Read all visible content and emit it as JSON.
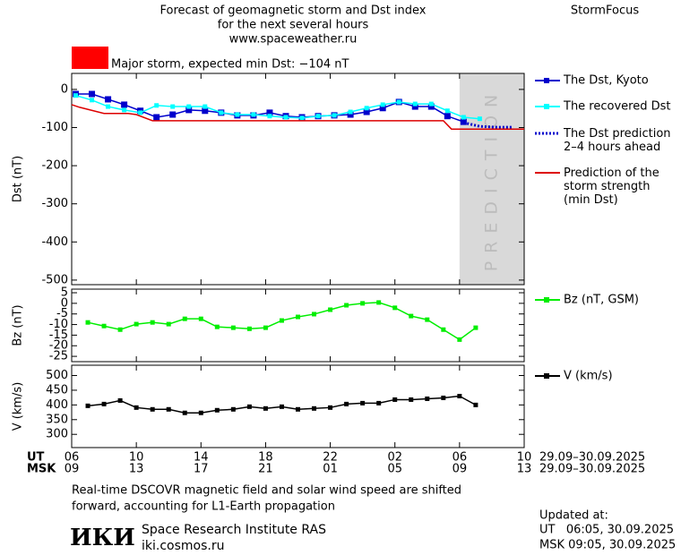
{
  "header": {
    "title_lines": [
      "Forecast of geomagnetic storm and Dst index",
      "for the next several hours",
      "www.spaceweather.ru"
    ],
    "brand": "StormFocus",
    "storm_note": "Major storm, expected min Dst: −104 nT",
    "storm_color": "#ff0000"
  },
  "time_axis": {
    "xlim": [
      6,
      34
    ],
    "ut": "UT",
    "msk": "MSK",
    "ut_ticks": [
      {
        "value": 6,
        "label": "06"
      },
      {
        "value": 10,
        "label": "10"
      },
      {
        "value": 14,
        "label": "14"
      },
      {
        "value": 18,
        "label": "18"
      },
      {
        "value": 22,
        "label": "22"
      },
      {
        "value": 26,
        "label": "02"
      },
      {
        "value": 30,
        "label": "06"
      },
      {
        "value": 34,
        "label": "10"
      }
    ],
    "msk_ticks": [
      {
        "value": 6,
        "label": "09"
      },
      {
        "value": 10,
        "label": "13"
      },
      {
        "value": 14,
        "label": "17"
      },
      {
        "value": 18,
        "label": "21"
      },
      {
        "value": 22,
        "label": "01"
      },
      {
        "value": 26,
        "label": "05"
      },
      {
        "value": 30,
        "label": "09"
      },
      {
        "value": 34,
        "label": "13"
      }
    ],
    "ut_range": "29.09–30.09.2025",
    "msk_range": "29.09–30.09.2025"
  },
  "chart_data": [
    {
      "type": "line",
      "ylabel": "Dst (nT)",
      "ylim": [
        -512,
        42
      ],
      "yticks": [
        0,
        -100,
        -200,
        -300,
        -400,
        -500
      ],
      "prediction_region": {
        "x": [
          30,
          34
        ],
        "label": "PREDICTION",
        "color": "#d9d9d9"
      },
      "series": [
        {
          "name": "The Dst, Kyoto",
          "color": "#0000cc",
          "marker": "square",
          "marker_size": 7,
          "x": [
            6.25,
            7.25,
            8.25,
            9.25,
            10.25,
            11.25,
            12.25,
            13.25,
            14.25,
            15.25,
            16.25,
            17.25,
            18.25,
            19.25,
            20.25,
            21.25,
            22.25,
            23.25,
            24.25,
            25.25,
            26.25,
            27.25,
            28.25,
            29.25,
            30.25
          ],
          "values": [
            -12,
            -12,
            -26,
            -40,
            -56,
            -73,
            -66,
            -54,
            -56,
            -61,
            -68,
            -68,
            -61,
            -70,
            -73,
            -70,
            -68,
            -66,
            -59,
            -49,
            -33,
            -45,
            -45,
            -70,
            -85
          ]
        },
        {
          "name": "The recovered Dst",
          "color": "#00ffff",
          "marker": "square",
          "marker_size": 5,
          "x": [
            6.25,
            7.25,
            8.25,
            9.25,
            10.25,
            11.25,
            12.25,
            13.25,
            14.25,
            15.25,
            16.25,
            17.25,
            18.25,
            19.25,
            20.25,
            21.25,
            22.25,
            23.25,
            24.25,
            25.25,
            26.25,
            27.25,
            28.25,
            29.25,
            30.25,
            31.25
          ],
          "values": [
            -16,
            -28,
            -45,
            -54,
            -61,
            -42,
            -45,
            -45,
            -45,
            -61,
            -66,
            -66,
            -70,
            -73,
            -75,
            -70,
            -68,
            -59,
            -49,
            -40,
            -33,
            -38,
            -38,
            -56,
            -73,
            -77
          ]
        },
        {
          "name": "The Dst prediction\n2–4 hours ahead",
          "color": "#0000cc",
          "dash": "dotted",
          "x": [
            30.25,
            31.25,
            32.25,
            33.25
          ],
          "values": [
            -87,
            -97,
            -99,
            -99
          ]
        },
        {
          "name": "Prediction of the\nstorm strength\n(min Dst)",
          "color": "#dd0000",
          "x": [
            6,
            6.5,
            8,
            9.5,
            10,
            11,
            29,
            29.5,
            34
          ],
          "values": [
            -40,
            -47,
            -63,
            -63,
            -66,
            -82,
            -82,
            -104,
            -104
          ]
        }
      ]
    },
    {
      "type": "line",
      "ylabel": "Bz (nT)",
      "ylim": [
        -27.5,
        6.7
      ],
      "yticks": [
        5,
        0,
        -5,
        -10,
        -15,
        -20,
        -25
      ],
      "series": [
        {
          "name": "Bz (nT, GSM)",
          "color": "#00ee00",
          "marker": "square",
          "marker_size": 5,
          "x": [
            7,
            8,
            9,
            10,
            11,
            12,
            13,
            14,
            15,
            16,
            17,
            18,
            19,
            20,
            21,
            22,
            23,
            24,
            25,
            26,
            27,
            28,
            29,
            30,
            31
          ],
          "values": [
            -9,
            -10.7,
            -12.4,
            -9.8,
            -9,
            -9.8,
            -7.3,
            -7.3,
            -11.1,
            -11.5,
            -12,
            -11.5,
            -8.1,
            -6.4,
            -5.1,
            -3,
            -0.9,
            0,
            0.4,
            -2.1,
            -6,
            -7.7,
            -12.4,
            -17.1,
            -11.5
          ]
        }
      ]
    },
    {
      "type": "line",
      "ylabel": "V (km/s)",
      "ylim": [
        255,
        535
      ],
      "yticks": [
        500,
        450,
        400,
        350,
        300
      ],
      "series": [
        {
          "name": "V (km/s)",
          "color": "#000000",
          "marker": "square",
          "marker_size": 5,
          "x": [
            7,
            8,
            9,
            10,
            11,
            12,
            13,
            14,
            15,
            16,
            17,
            18,
            19,
            20,
            21,
            22,
            23,
            24,
            25,
            26,
            27,
            28,
            29,
            30,
            31
          ],
          "values": [
            397,
            403,
            415,
            391,
            385,
            385,
            373,
            373,
            382,
            385,
            394,
            388,
            394,
            385,
            388,
            391,
            403,
            406,
            406,
            418,
            418,
            421,
            424,
            430,
            400
          ]
        }
      ]
    }
  ],
  "footer": {
    "note_lines": [
      "Real-time DSCOVR magnetic field and solar wind speed are shifted",
      "forward, accounting for L1-Earth propagation"
    ],
    "logo": "ИКИ",
    "institute": "Space Research Institute RAS",
    "url": "iki.cosmos.ru",
    "updated_label": "Updated at:",
    "updated_lines": [
      "UT   06:05, 30.09.2025",
      "MSK 09:05, 30.09.2025"
    ]
  }
}
